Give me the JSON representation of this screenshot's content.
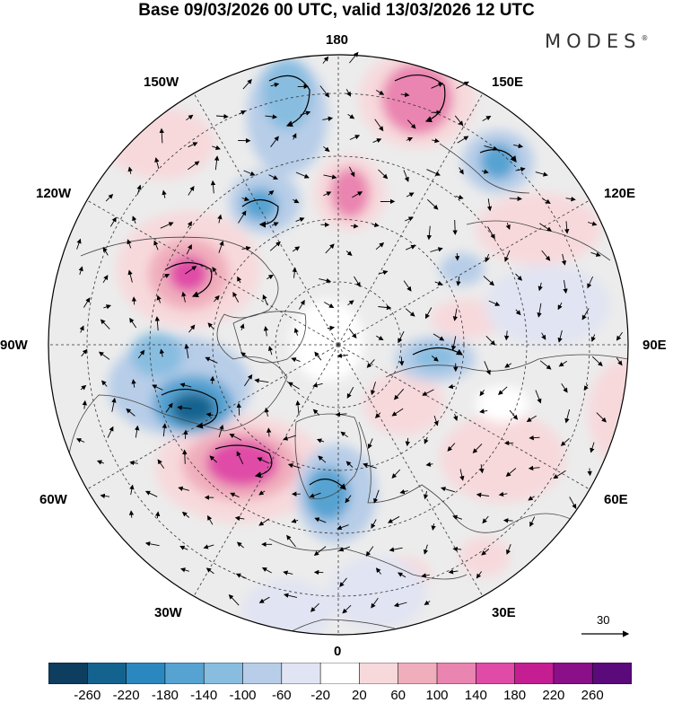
{
  "title": "Base 09/03/2026 00 UTC, valid 13/03/2026 12 UTC",
  "brand": "MODES",
  "brand_mark": "®",
  "longitude_labels": {
    "180": "180",
    "150E": "150E",
    "120E": "120E",
    "90E": "90E",
    "60E": "60E",
    "30E": "30E",
    "0": "0",
    "30W": "30W",
    "60W": "60W",
    "90W": "90W",
    "120W": "120W",
    "150W": "150W"
  },
  "vector_scale_label": "30",
  "colorbar": {
    "ticks": [
      "-260",
      "-220",
      "-180",
      "-140",
      "-100",
      "-60",
      "-20",
      "20",
      "60",
      "100",
      "140",
      "180",
      "220",
      "260"
    ],
    "colors": [
      "#0d3d5f",
      "#14638f",
      "#2b87bf",
      "#56a3d2",
      "#88bde0",
      "#b7cde8",
      "#e1e4f2",
      "#ffffff",
      "#f7d9dc",
      "#f0adbc",
      "#ea84b0",
      "#e04ba7",
      "#c41e92",
      "#8a0f88",
      "#5a0a7a"
    ]
  },
  "chart_data": {
    "type": "heatmap",
    "projection": "north-polar-stereographic",
    "field": "anomaly with wind vectors",
    "value_range": [
      -260,
      260
    ],
    "anomaly_centres": [
      {
        "location": "North Atlantic south of Greenland",
        "sign": "positive",
        "value": 180
      },
      {
        "location": "Hudson Bay / Labrador",
        "sign": "negative",
        "value": -180
      },
      {
        "location": "Alaska / Yukon",
        "sign": "positive",
        "value": 180
      },
      {
        "location": "Bering Sea",
        "sign": "positive",
        "value": 140
      },
      {
        "location": "North Pacific near 180",
        "sign": "negative",
        "value": -140
      },
      {
        "location": "East Siberian Sea",
        "sign": "positive",
        "value": 140
      },
      {
        "location": "Northwest Pacific / Kamchatka",
        "sign": "negative",
        "value": -140
      },
      {
        "location": "Scandinavia / Norwegian Sea",
        "sign": "negative",
        "value": -140
      },
      {
        "location": "Kara Sea",
        "sign": "negative",
        "value": -100
      },
      {
        "location": "Northeast China",
        "sign": "positive",
        "value": 60
      },
      {
        "location": "Central Asia",
        "sign": "positive",
        "value": 60
      }
    ]
  }
}
